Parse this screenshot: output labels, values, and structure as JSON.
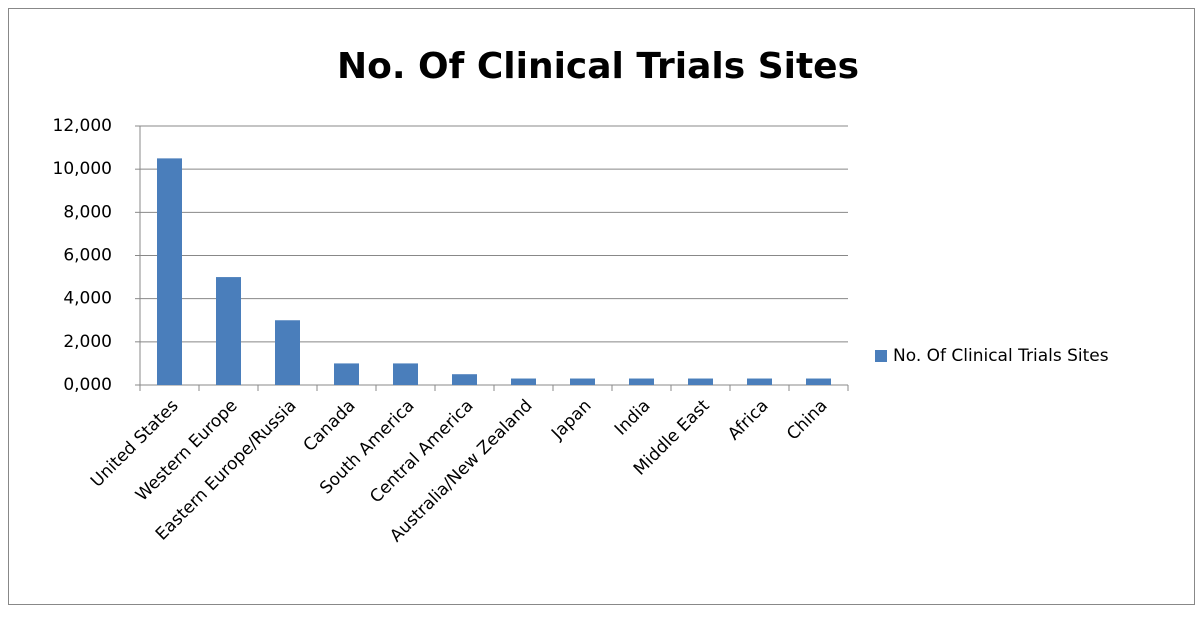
{
  "chart_data": {
    "type": "bar",
    "title": "No. Of Clinical Trials Sites",
    "categories": [
      "United States",
      "Western Europe",
      "Eastern Europe/Russia",
      "Canada",
      "South America",
      "Central America",
      "Australia/New Zealand",
      "Japan",
      "India",
      "Middle East",
      "Africa",
      "China"
    ],
    "series": [
      {
        "name": "No. Of Clinical Trials Sites",
        "color": "#4a7ebb",
        "values": [
          10500,
          5000,
          3000,
          1000,
          1000,
          500,
          300,
          300,
          300,
          300,
          300,
          300
        ]
      }
    ],
    "ylim": [
      0,
      12000
    ],
    "yticks": [
      {
        "value": 0,
        "label": "0,000"
      },
      {
        "value": 2000,
        "label": "2,000"
      },
      {
        "value": 4000,
        "label": "4,000"
      },
      {
        "value": 6000,
        "label": "6,000"
      },
      {
        "value": 8000,
        "label": "8,000"
      },
      {
        "value": 10000,
        "label": "10,000"
      },
      {
        "value": 12000,
        "label": "12,000"
      }
    ],
    "grid": true,
    "legend": "right"
  }
}
